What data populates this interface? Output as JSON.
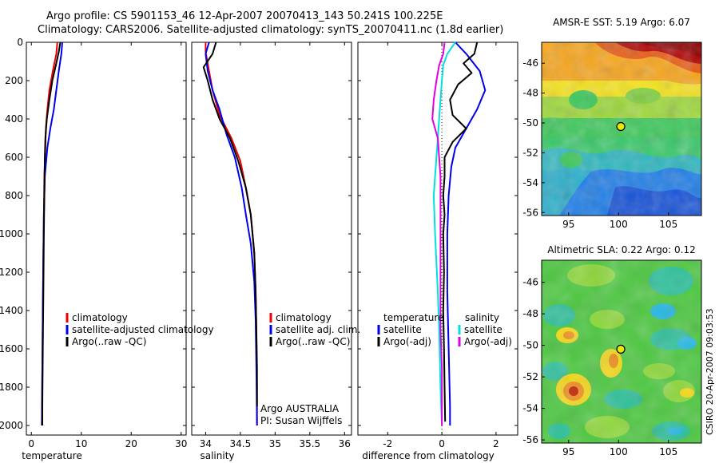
{
  "header": {
    "line1": "Argo profile: CS 5901153_46 12-Apr-2007 20070413_143 50.241S 100.225E",
    "line2": "Climatology: CARS2006. Satellite-adjusted climatology: synTS_20070411.nc (1.8d earlier)"
  },
  "credit": "CSIRO 20-Apr-2007 09:03:53",
  "colors": {
    "climatology": "#ee0000",
    "satellite": "#0000ee",
    "argo": "#000000",
    "temp_satellite": "#0000ee",
    "sal_satellite": "#00e0e0",
    "sal_argo": "#e000e0",
    "circle_fill": "#e8e800"
  },
  "chart_data": [
    {
      "id": "temperature",
      "type": "line",
      "xlabel": "temperature",
      "ylabel": "",
      "xlim": [
        -1,
        31
      ],
      "ylim": [
        2050,
        0
      ],
      "xticks": [
        "0",
        "10",
        "20",
        "30"
      ],
      "xtick_values": [
        0,
        10,
        20,
        30
      ],
      "yticks": [
        "0",
        "200",
        "400",
        "600",
        "800",
        "1000",
        "1200",
        "1400",
        "1600",
        "1800",
        "2000"
      ],
      "ytick_values": [
        0,
        200,
        400,
        600,
        800,
        1000,
        1200,
        1400,
        1600,
        1800,
        2000
      ],
      "legend": [
        "climatology",
        "satellite-adjusted climatology",
        "Argo(..raw -QC)"
      ],
      "legend_colors": [
        "#ee0000",
        "#0000ee",
        "#000000"
      ],
      "series": [
        {
          "name": "climatology",
          "color": "#ee0000",
          "points": [
            [
              5.2,
              0
            ],
            [
              5.0,
              60
            ],
            [
              4.3,
              150
            ],
            [
              3.6,
              250
            ],
            [
              3.2,
              350
            ],
            [
              2.9,
              450
            ],
            [
              2.8,
              550
            ],
            [
              2.6,
              700
            ],
            [
              2.5,
              900
            ],
            [
              2.4,
              1100
            ],
            [
              2.3,
              1400
            ],
            [
              2.2,
              1700
            ],
            [
              2.1,
              2000
            ]
          ]
        },
        {
          "name": "satellite-adjusted climatology",
          "color": "#0000ee",
          "points": [
            [
              6.2,
              0
            ],
            [
              6.0,
              60
            ],
            [
              5.5,
              150
            ],
            [
              5.0,
              250
            ],
            [
              4.5,
              350
            ],
            [
              3.8,
              450
            ],
            [
              3.2,
              550
            ],
            [
              2.7,
              700
            ],
            [
              2.5,
              900
            ],
            [
              2.4,
              1100
            ],
            [
              2.3,
              1400
            ],
            [
              2.2,
              1700
            ],
            [
              2.1,
              2000
            ]
          ]
        },
        {
          "name": "Argo(..raw -QC)",
          "color": "#000000",
          "points": [
            [
              5.8,
              0
            ],
            [
              5.5,
              50
            ],
            [
              4.9,
              120
            ],
            [
              4.2,
              200
            ],
            [
              3.6,
              300
            ],
            [
              3.1,
              400
            ],
            [
              2.8,
              500
            ],
            [
              2.7,
              600
            ],
            [
              2.6,
              800
            ],
            [
              2.5,
              1000
            ],
            [
              2.4,
              1300
            ],
            [
              2.3,
              1600
            ],
            [
              2.2,
              1900
            ],
            [
              2.2,
              2000
            ]
          ]
        }
      ]
    },
    {
      "id": "salinity",
      "type": "line",
      "xlabel": "salinity",
      "ylabel": "",
      "xlim": [
        33.8,
        36.1
      ],
      "ylim": [
        2050,
        0
      ],
      "xticks": [
        "34",
        "34.5",
        "35",
        "35.5",
        "36"
      ],
      "xtick_values": [
        34,
        34.5,
        35,
        35.5,
        36
      ],
      "legend": [
        "climatology",
        "satellite adj. clim.",
        "Argo(..raw -QC)"
      ],
      "legend_colors": [
        "#ee0000",
        "#0000ee",
        "#000000"
      ],
      "annotations": [
        "Argo AUSTRALIA",
        "PI: Susan Wijffels"
      ],
      "series": [
        {
          "name": "climatology",
          "color": "#ee0000",
          "points": [
            [
              34.0,
              0
            ],
            [
              34.0,
              50
            ],
            [
              34.05,
              150
            ],
            [
              34.1,
              250
            ],
            [
              34.2,
              380
            ],
            [
              34.37,
              500
            ],
            [
              34.5,
              620
            ],
            [
              34.58,
              760
            ],
            [
              34.65,
              900
            ],
            [
              34.7,
              1100
            ],
            [
              34.72,
              1300
            ],
            [
              34.73,
              1500
            ],
            [
              34.74,
              1800
            ],
            [
              34.74,
              2000
            ]
          ]
        },
        {
          "name": "satellite adj. clim.",
          "color": "#0000ee",
          "points": [
            [
              34.05,
              0
            ],
            [
              34.0,
              60
            ],
            [
              34.03,
              150
            ],
            [
              34.1,
              250
            ],
            [
              34.2,
              350
            ],
            [
              34.3,
              480
            ],
            [
              34.42,
              600
            ],
            [
              34.52,
              760
            ],
            [
              34.58,
              900
            ],
            [
              34.65,
              1050
            ],
            [
              34.7,
              1250
            ],
            [
              34.72,
              1450
            ],
            [
              34.73,
              1700
            ],
            [
              34.74,
              2000
            ]
          ]
        },
        {
          "name": "Argo(..raw -QC)",
          "color": "#000000",
          "points": [
            [
              34.15,
              0
            ],
            [
              34.1,
              60
            ],
            [
              33.97,
              130
            ],
            [
              34.03,
              200
            ],
            [
              34.1,
              300
            ],
            [
              34.2,
              400
            ],
            [
              34.35,
              500
            ],
            [
              34.47,
              620
            ],
            [
              34.58,
              760
            ],
            [
              34.65,
              900
            ],
            [
              34.7,
              1100
            ],
            [
              34.72,
              1300
            ],
            [
              34.73,
              1500
            ],
            [
              34.74,
              1700
            ],
            [
              34.74,
              1900
            ]
          ]
        }
      ]
    },
    {
      "id": "difference",
      "type": "line",
      "xlabel": "difference from climatology",
      "ylabel": "",
      "xlim": [
        -3.1,
        2.8
      ],
      "ylim": [
        2050,
        0
      ],
      "xticks": [
        "-2",
        "0",
        "2"
      ],
      "xtick_values": [
        -2,
        0,
        2
      ],
      "legend_temperature": {
        "title": "temperature",
        "items": [
          "satellite",
          "Argo(-adj)"
        ],
        "colors": [
          "#0000ee",
          "#000000"
        ]
      },
      "legend_salinity": {
        "title": "salinity",
        "items": [
          "satellite",
          "Argo(-adj)"
        ],
        "colors": [
          "#00e0e0",
          "#e000e0"
        ]
      },
      "series": [
        {
          "name": "temperature satellite",
          "color": "#0000ee",
          "points": [
            [
              0.5,
              0
            ],
            [
              0.9,
              60
            ],
            [
              1.4,
              150
            ],
            [
              1.6,
              250
            ],
            [
              1.3,
              350
            ],
            [
              0.9,
              450
            ],
            [
              0.5,
              550
            ],
            [
              0.35,
              650
            ],
            [
              0.25,
              800
            ],
            [
              0.2,
              1000
            ],
            [
              0.2,
              1300
            ],
            [
              0.25,
              1600
            ],
            [
              0.3,
              1900
            ],
            [
              0.3,
              2000
            ]
          ]
        },
        {
          "name": "temperature Argo(-adj)",
          "color": "#000000",
          "points": [
            [
              1.3,
              0
            ],
            [
              1.2,
              60
            ],
            [
              0.8,
              110
            ],
            [
              1.1,
              160
            ],
            [
              0.6,
              220
            ],
            [
              0.3,
              300
            ],
            [
              0.4,
              380
            ],
            [
              0.9,
              450
            ],
            [
              0.4,
              520
            ],
            [
              0.1,
              600
            ],
            [
              0.1,
              700
            ],
            [
              0.05,
              800
            ],
            [
              0.1,
              900
            ],
            [
              0.05,
              1000
            ],
            [
              0.08,
              1200
            ],
            [
              0.05,
              1400
            ],
            [
              0.08,
              1600
            ],
            [
              0.1,
              1800
            ],
            [
              0.12,
              1980
            ]
          ]
        },
        {
          "name": "salinity satellite",
          "color": "#00e0e0",
          "points": [
            [
              0.5,
              0
            ],
            [
              0.2,
              60
            ],
            [
              0.05,
              120
            ],
            [
              0.0,
              200
            ],
            [
              -0.05,
              300
            ],
            [
              -0.1,
              400
            ],
            [
              -0.15,
              500
            ],
            [
              -0.2,
              600
            ],
            [
              -0.25,
              700
            ],
            [
              -0.3,
              800
            ],
            [
              -0.25,
              1000
            ],
            [
              -0.15,
              1300
            ],
            [
              -0.1,
              1500
            ],
            [
              -0.05,
              1800
            ],
            [
              0.0,
              2000
            ]
          ]
        },
        {
          "name": "salinity Argo(-adj)",
          "color": "#e000e0",
          "points": [
            [
              0.1,
              0
            ],
            [
              0.05,
              60
            ],
            [
              -0.1,
              120
            ],
            [
              -0.2,
              200
            ],
            [
              -0.3,
              300
            ],
            [
              -0.35,
              400
            ],
            [
              -0.15,
              500
            ],
            [
              -0.1,
              600
            ],
            [
              -0.05,
              700
            ],
            [
              -0.05,
              800
            ],
            [
              -0.05,
              1000
            ],
            [
              -0.05,
              1300
            ],
            [
              -0.05,
              1500
            ],
            [
              0.0,
              1700
            ],
            [
              0.0,
              2000
            ]
          ]
        }
      ]
    },
    {
      "id": "sst_map",
      "type": "heatmap",
      "title": "AMSR-E SST: 5.19 Argo: 6.07",
      "xticks": [
        "95",
        "100",
        "105"
      ],
      "xtick_values": [
        95,
        100,
        105
      ],
      "yticks": [
        "-46",
        "-48",
        "-50",
        "-52",
        "-54",
        "-56"
      ],
      "ytick_values": [
        -46,
        -48,
        -50,
        -52,
        -54,
        -56
      ],
      "xlim": [
        92.3,
        108.3
      ],
      "ylim": [
        -56.2,
        -44.6
      ],
      "marker": {
        "lon": 100.225,
        "lat": -50.241
      }
    },
    {
      "id": "sla_map",
      "type": "heatmap",
      "title": "Altimetric SLA: 0.22 Argo: 0.12",
      "xticks": [
        "95",
        "100",
        "105"
      ],
      "xtick_values": [
        95,
        100,
        105
      ],
      "yticks": [
        "-46",
        "-48",
        "-50",
        "-52",
        "-54",
        "-56"
      ],
      "ytick_values": [
        -46,
        -48,
        -50,
        -52,
        -54,
        -56
      ],
      "xlim": [
        92.3,
        108.3
      ],
      "ylim": [
        -56.2,
        -44.6
      ],
      "marker": {
        "lon": 100.225,
        "lat": -50.241
      }
    }
  ]
}
